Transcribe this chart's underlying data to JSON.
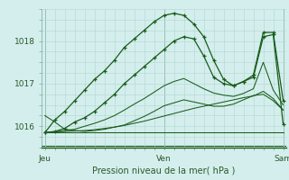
{
  "title": "Pression niveau de la mer( hPa )",
  "bg_color": "#d4eeed",
  "grid_color": "#b0d8d0",
  "line_color": "#1a5c1a",
  "xtick_labels": [
    "Jeu",
    "Ven",
    "Sam"
  ],
  "xtick_positions": [
    0,
    12,
    24
  ],
  "ylim": [
    1015.55,
    1018.75
  ],
  "yticks": [
    1016,
    1017,
    1018
  ],
  "xlim": [
    -0.3,
    24.3
  ],
  "series": [
    [
      1015.85,
      1016.15,
      1016.35,
      1016.6,
      1016.85,
      1017.1,
      1017.3,
      1017.55,
      1017.85,
      1018.05,
      1018.25,
      1018.45,
      1018.6,
      1018.65,
      1018.6,
      1018.4,
      1018.1,
      1017.55,
      1017.1,
      1016.95,
      1017.05,
      1017.15,
      1018.1,
      1018.15,
      1016.05
    ],
    [
      1015.85,
      1015.88,
      1015.95,
      1016.1,
      1016.2,
      1016.35,
      1016.55,
      1016.75,
      1017.0,
      1017.2,
      1017.4,
      1017.6,
      1017.8,
      1018.0,
      1018.1,
      1018.05,
      1017.65,
      1017.15,
      1017.0,
      1016.95,
      1017.05,
      1017.2,
      1018.2,
      1018.2,
      1016.6
    ],
    [
      1015.85,
      1015.87,
      1015.9,
      1015.93,
      1016.0,
      1016.07,
      1016.15,
      1016.25,
      1016.38,
      1016.52,
      1016.65,
      1016.8,
      1016.95,
      1017.05,
      1017.12,
      1017.0,
      1016.88,
      1016.78,
      1016.73,
      1016.7,
      1016.77,
      1016.88,
      1017.5,
      1016.85,
      1016.5
    ],
    [
      1015.85,
      1015.87,
      1015.88,
      1015.89,
      1015.9,
      1015.92,
      1015.95,
      1015.98,
      1016.02,
      1016.07,
      1016.12,
      1016.18,
      1016.24,
      1016.3,
      1016.36,
      1016.42,
      1016.47,
      1016.52,
      1016.57,
      1016.62,
      1016.67,
      1016.71,
      1016.82,
      1016.65,
      1016.38
    ],
    [
      1015.85,
      1015.85,
      1015.85,
      1015.85,
      1015.85,
      1015.85,
      1015.85,
      1015.85,
      1015.85,
      1015.85,
      1015.85,
      1015.85,
      1015.85,
      1015.85,
      1015.85,
      1015.85,
      1015.85,
      1015.85,
      1015.85,
      1015.85,
      1015.85,
      1015.85,
      1015.85,
      1015.85,
      1015.85
    ],
    [
      1016.25,
      1016.1,
      1015.93,
      1015.9,
      1015.88,
      1015.9,
      1015.93,
      1015.98,
      1016.03,
      1016.13,
      1016.23,
      1016.35,
      1016.48,
      1016.55,
      1016.62,
      1016.57,
      1016.52,
      1016.47,
      1016.47,
      1016.52,
      1016.62,
      1016.72,
      1016.75,
      1016.6,
      1016.38
    ]
  ],
  "markers": [
    true,
    true,
    false,
    false,
    false,
    false
  ]
}
